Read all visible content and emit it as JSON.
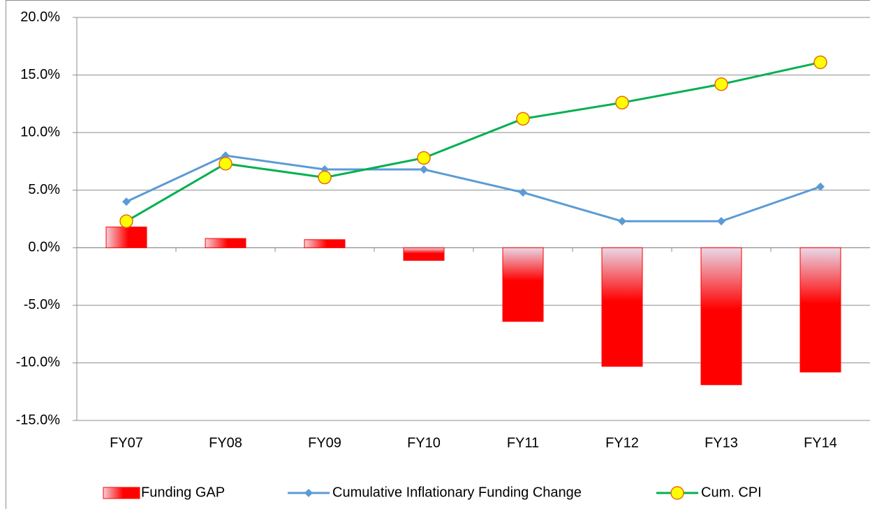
{
  "chart_data": {
    "type": "combo",
    "categories": [
      "FY07",
      "FY08",
      "FY09",
      "FY10",
      "FY11",
      "FY12",
      "FY13",
      "FY14"
    ],
    "series": [
      {
        "name": "Funding GAP",
        "type": "bar",
        "color": "#ff0000",
        "values": [
          1.8,
          0.8,
          0.7,
          -1.1,
          -6.4,
          -10.3,
          -11.9,
          -10.8
        ]
      },
      {
        "name": "Cumulative Inflationary Funding Change",
        "type": "line",
        "marker": "diamond",
        "color": "#5b9bd5",
        "values": [
          4.0,
          8.0,
          6.8,
          6.8,
          4.8,
          2.3,
          2.3,
          5.3
        ]
      },
      {
        "name": "Cum. CPI",
        "type": "line",
        "marker": "circle",
        "color": "#00b050",
        "values": [
          2.3,
          7.3,
          6.1,
          7.8,
          11.2,
          12.6,
          14.2,
          16.1
        ]
      }
    ],
    "ylim": [
      -15,
      20
    ],
    "yticks": [
      {
        "value": -15,
        "label": "-15.0%"
      },
      {
        "value": -10,
        "label": "-10.0%"
      },
      {
        "value": -5,
        "label": "-5.0%"
      },
      {
        "value": 0,
        "label": "0.0%"
      },
      {
        "value": 5,
        "label": "5.0%"
      },
      {
        "value": 10,
        "label": "10.0%"
      },
      {
        "value": 15,
        "label": "15.0%"
      },
      {
        "value": 20,
        "label": "20.0%"
      }
    ],
    "grid": true,
    "legend": "bottom"
  }
}
